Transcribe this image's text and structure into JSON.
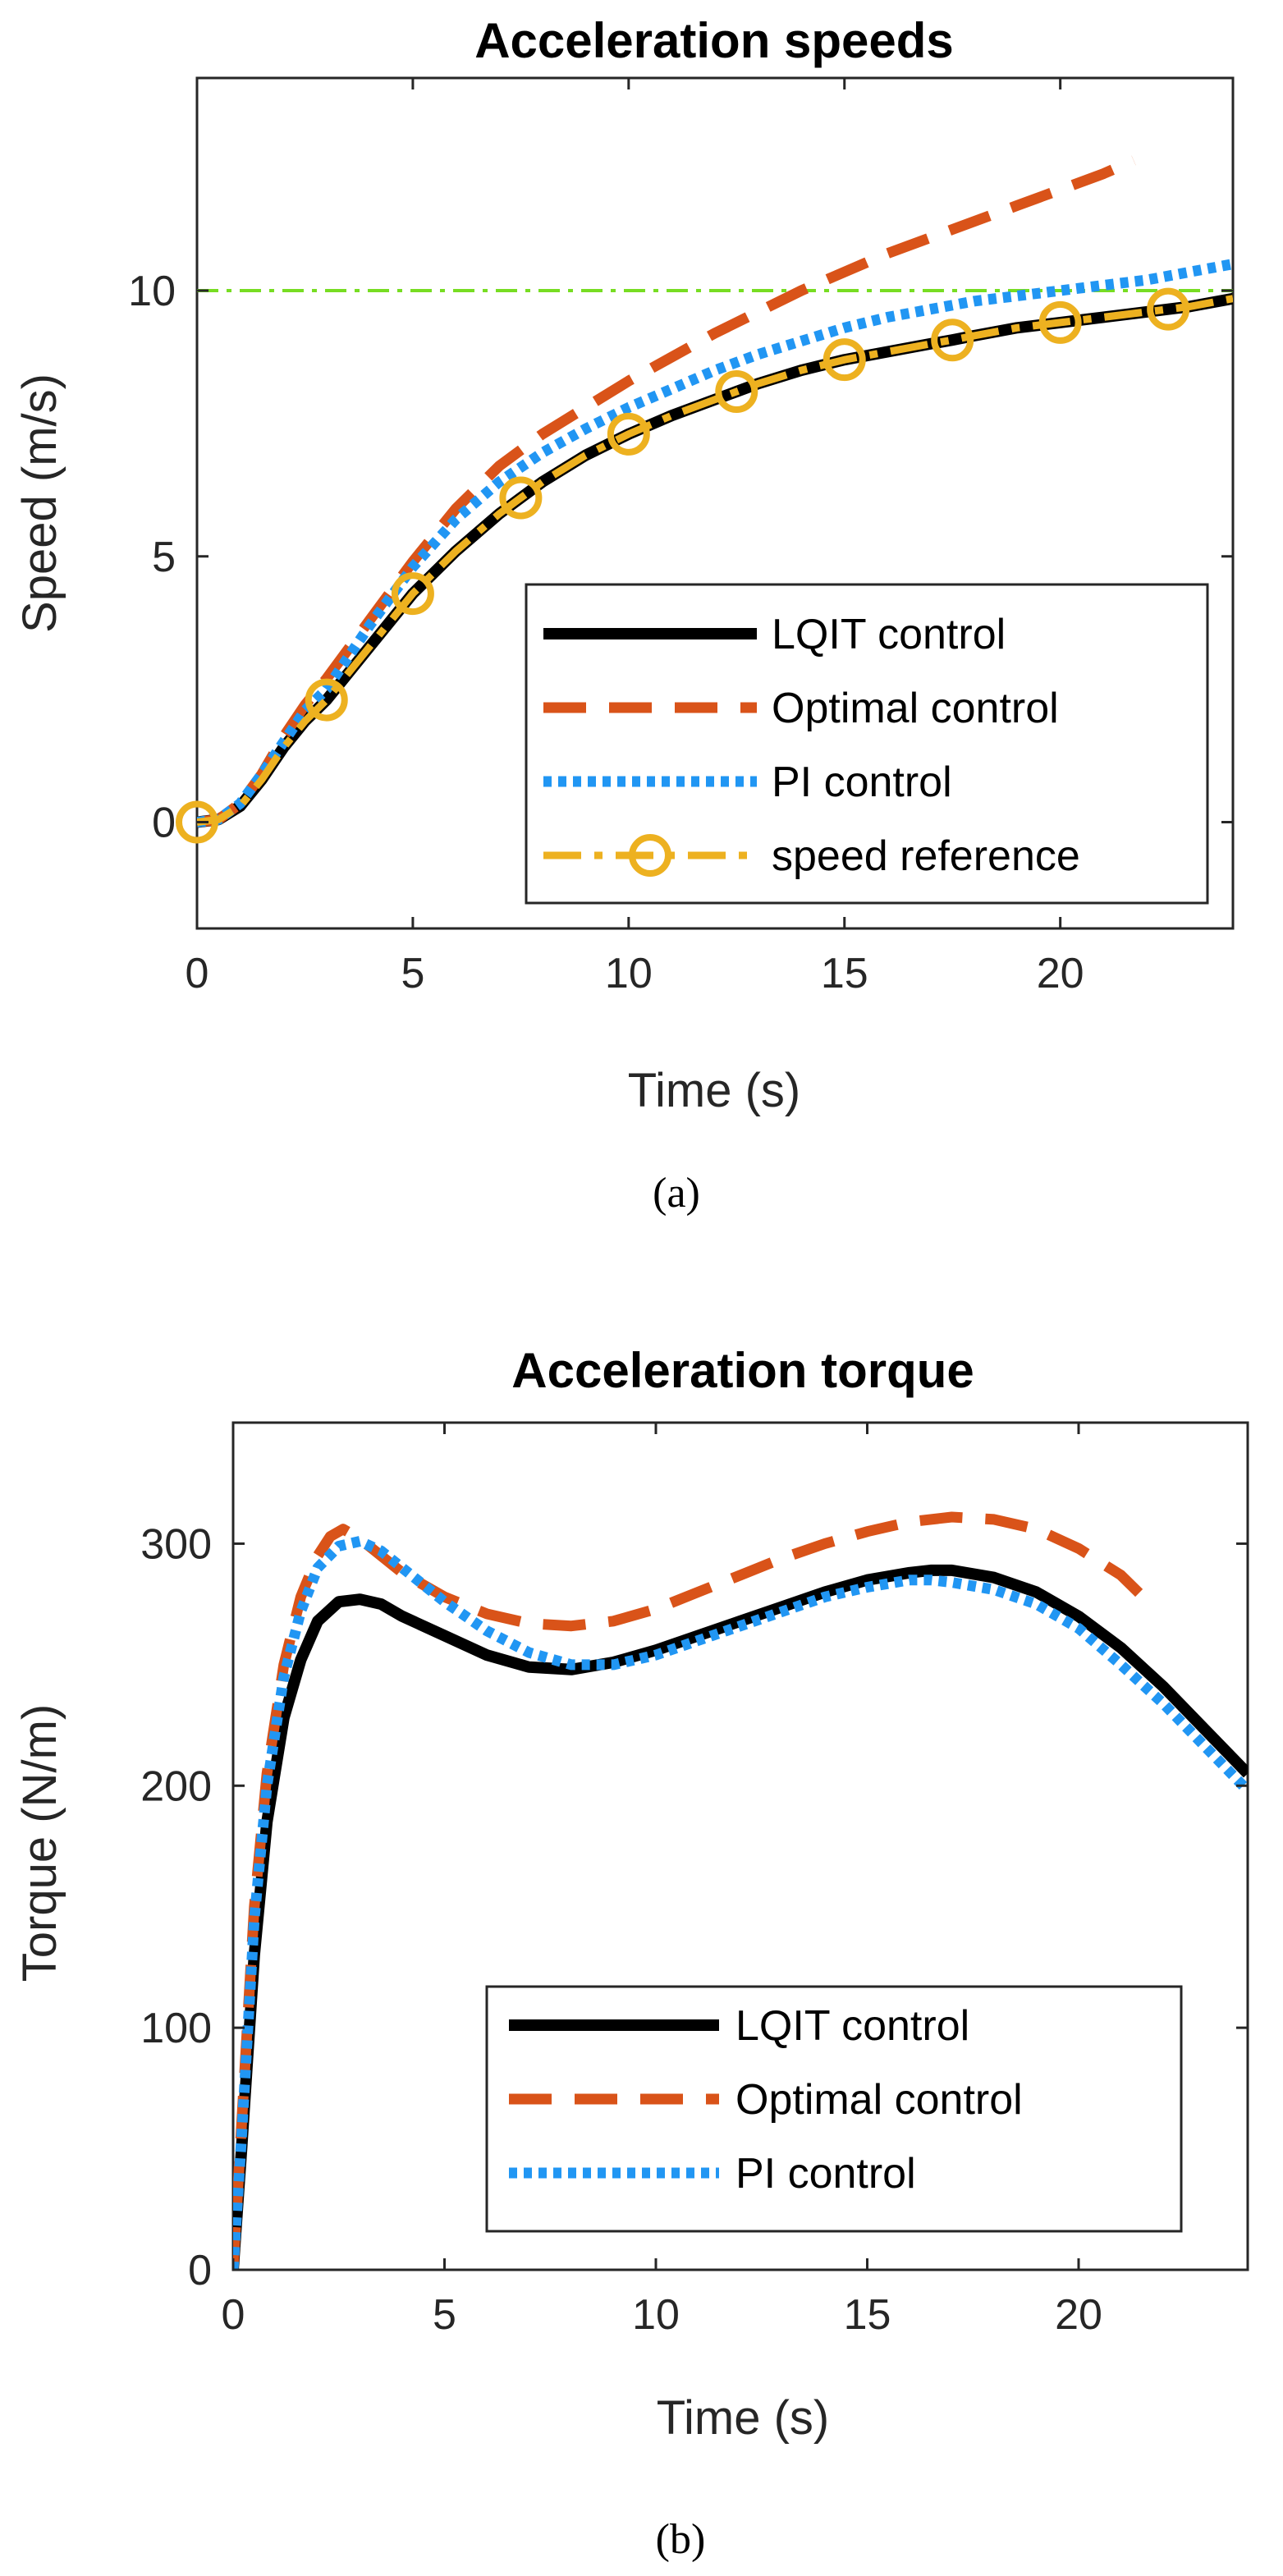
{
  "captions": [
    "(a)",
    "(b)"
  ],
  "colors": {
    "lqit": "#000000",
    "optimal": "#d95319",
    "pi": "#2196f3",
    "reference": "#edb120",
    "target": "#77dd22",
    "axis": "#262626"
  },
  "chart_data": [
    {
      "type": "line",
      "title": "Acceleration speeds",
      "xlabel": "Time (s)",
      "ylabel": "Speed (m/s)",
      "xlim": [
        0,
        24
      ],
      "ylim": [
        -2,
        14
      ],
      "xticks": [
        0,
        5,
        10,
        15,
        20
      ],
      "yticks": [
        0,
        5,
        10
      ],
      "legend_position": "bottom-right",
      "reference_line": {
        "y": 10,
        "style": "dash-dot"
      },
      "series": [
        {
          "name": "LQIT control",
          "style": "solid",
          "color": "#000000",
          "x": [
            0,
            0.5,
            1,
            1.5,
            2,
            2.5,
            3,
            4,
            5,
            6,
            7,
            7.5,
            8,
            9,
            10,
            11,
            12,
            12.5,
            13,
            14,
            15,
            16,
            17,
            17.5,
            18,
            19,
            20,
            21,
            22,
            22.5,
            23,
            24
          ],
          "y": [
            0,
            0.05,
            0.3,
            0.8,
            1.4,
            1.9,
            2.3,
            3.3,
            4.3,
            5.1,
            5.8,
            6.1,
            6.4,
            6.9,
            7.3,
            7.65,
            7.95,
            8.1,
            8.25,
            8.5,
            8.7,
            8.85,
            9.0,
            9.07,
            9.15,
            9.3,
            9.4,
            9.5,
            9.6,
            9.65,
            9.7,
            9.85
          ]
        },
        {
          "name": "Optimal control",
          "style": "dashed",
          "color": "#d95319",
          "x": [
            0,
            0.5,
            1,
            1.5,
            2,
            2.5,
            3,
            4,
            5,
            6,
            7,
            8,
            9,
            10,
            11,
            12,
            13,
            14,
            15,
            16,
            17,
            18,
            19,
            20,
            21,
            21.7
          ],
          "y": [
            0,
            0.05,
            0.35,
            0.9,
            1.6,
            2.2,
            2.7,
            3.8,
            4.9,
            5.9,
            6.7,
            7.3,
            7.8,
            8.3,
            8.75,
            9.2,
            9.6,
            10.0,
            10.35,
            10.7,
            11.0,
            11.3,
            11.6,
            11.9,
            12.2,
            12.45
          ]
        },
        {
          "name": "PI control",
          "style": "dotted",
          "color": "#2196f3",
          "x": [
            0,
            0.5,
            1,
            1.5,
            2,
            2.5,
            3,
            4,
            5,
            6,
            7,
            8,
            9,
            10,
            11,
            12,
            13,
            14,
            15,
            16,
            17,
            18,
            19,
            20,
            21,
            22,
            23,
            24
          ],
          "y": [
            0,
            0.05,
            0.35,
            0.9,
            1.5,
            2.1,
            2.5,
            3.7,
            4.8,
            5.7,
            6.4,
            6.95,
            7.4,
            7.8,
            8.15,
            8.5,
            8.8,
            9.05,
            9.3,
            9.5,
            9.65,
            9.8,
            9.9,
            10.0,
            10.1,
            10.2,
            10.35,
            10.5
          ]
        },
        {
          "name": "speed reference",
          "style": "dash-dot-circle",
          "color": "#edb120",
          "x": [
            0,
            0.5,
            1,
            1.5,
            2,
            2.5,
            3,
            4,
            5,
            6,
            7,
            7.5,
            8,
            9,
            10,
            11,
            12,
            12.5,
            13,
            14,
            15,
            16,
            17,
            17.5,
            18,
            19,
            20,
            21,
            22,
            22.5,
            23,
            24
          ],
          "y": [
            0,
            0.05,
            0.3,
            0.8,
            1.4,
            1.9,
            2.3,
            3.3,
            4.3,
            5.1,
            5.8,
            6.1,
            6.4,
            6.9,
            7.3,
            7.65,
            7.95,
            8.1,
            8.25,
            8.5,
            8.7,
            8.85,
            9.0,
            9.07,
            9.15,
            9.3,
            9.4,
            9.5,
            9.6,
            9.65,
            9.7,
            9.85
          ],
          "markers_x": [
            0,
            3,
            5,
            7.5,
            10,
            12.5,
            15,
            17.5,
            20,
            22.5
          ]
        }
      ]
    },
    {
      "type": "line",
      "title": "Acceleration torque",
      "xlabel": "Time (s)",
      "ylabel": "Torque (N/m)",
      "xlim": [
        0,
        24
      ],
      "ylim": [
        0,
        350
      ],
      "xticks": [
        0,
        5,
        10,
        15,
        20
      ],
      "yticks": [
        0,
        100,
        200,
        300
      ],
      "legend_position": "bottom-right",
      "series": [
        {
          "name": "LQIT control",
          "style": "solid",
          "color": "#000000",
          "x": [
            0,
            0.2,
            0.5,
            0.8,
            1.2,
            1.6,
            2.0,
            2.5,
            3.0,
            3.5,
            4,
            5,
            6,
            7,
            8,
            9,
            10,
            11,
            12,
            13,
            14,
            15,
            16,
            16.5,
            17,
            18,
            19,
            20,
            21,
            22,
            23,
            24
          ],
          "y": [
            0,
            50,
            130,
            185,
            228,
            252,
            268,
            276,
            277,
            275,
            270,
            262,
            254,
            249,
            248,
            251,
            256,
            262,
            268,
            274,
            280,
            285,
            288,
            289,
            289,
            286,
            280,
            270,
            257,
            241,
            223,
            205
          ]
        },
        {
          "name": "Optimal control",
          "style": "dashed",
          "color": "#d95319",
          "x": [
            0,
            0.2,
            0.5,
            0.8,
            1.2,
            1.6,
            2.0,
            2.3,
            2.6,
            3.0,
            3.5,
            4,
            5,
            6,
            7,
            8,
            9,
            10,
            11,
            12,
            13,
            14,
            15,
            16,
            17,
            18,
            19,
            20,
            21,
            21.7
          ],
          "y": [
            0,
            60,
            150,
            205,
            250,
            278,
            295,
            303,
            306,
            302,
            295,
            288,
            278,
            271,
            267,
            266,
            268,
            273,
            280,
            287,
            294,
            300,
            305,
            309,
            311,
            310,
            306,
            298,
            287,
            275
          ]
        },
        {
          "name": "PI control",
          "style": "dotted",
          "color": "#2196f3",
          "x": [
            0,
            0.2,
            0.5,
            0.8,
            1.2,
            1.6,
            2.0,
            2.5,
            3.0,
            3.5,
            4,
            5,
            6,
            7,
            8,
            9,
            10,
            11,
            12,
            13,
            14,
            15,
            16,
            16.5,
            17,
            18,
            19,
            20,
            21,
            22,
            23,
            24
          ],
          "y": [
            0,
            55,
            145,
            200,
            245,
            272,
            290,
            299,
            301,
            297,
            290,
            276,
            264,
            255,
            250,
            250,
            254,
            260,
            266,
            272,
            278,
            282,
            285,
            285,
            284,
            281,
            275,
            265,
            250,
            234,
            216,
            198
          ]
        }
      ]
    }
  ]
}
